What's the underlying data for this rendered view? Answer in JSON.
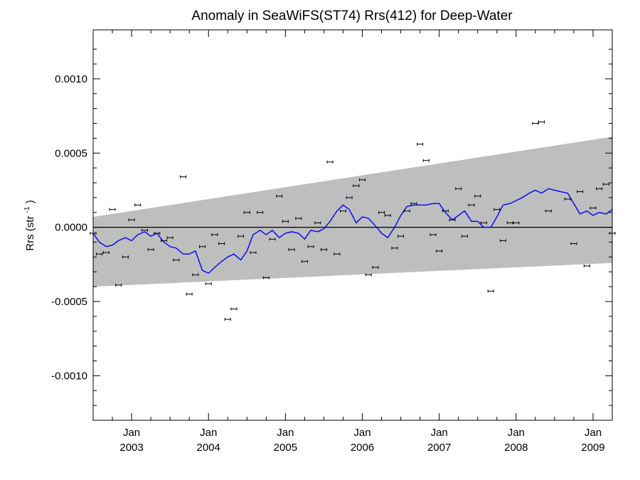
{
  "chart_data": {
    "type": "line",
    "title": "Anomaly in SeaWiFS(ST74) Rrs(412) for Deep-Water",
    "ylabel": {
      "base": "Rrs (str",
      "superscript": "-1",
      "tail": ")"
    },
    "xlabel": "",
    "xlim": [
      2002.5,
      2009.25
    ],
    "ylim": [
      -0.0013,
      0.00133
    ],
    "y_ticks": [
      {
        "value": 0.001,
        "label": "0.0010"
      },
      {
        "value": 0.0005,
        "label": "0.0005"
      },
      {
        "value": 0.0,
        "label": "0.0000"
      },
      {
        "value": -0.0005,
        "label": "-0.0005"
      },
      {
        "value": -0.001,
        "label": "-0.0010"
      }
    ],
    "x_ticks": [
      {
        "value": 2003.0,
        "month": "Jan",
        "year": "2003"
      },
      {
        "value": 2004.0,
        "month": "Jan",
        "year": "2004"
      },
      {
        "value": 2005.0,
        "month": "Jan",
        "year": "2005"
      },
      {
        "value": 2006.0,
        "month": "Jan",
        "year": "2006"
      },
      {
        "value": 2007.0,
        "month": "Jan",
        "year": "2007"
      },
      {
        "value": 2008.0,
        "month": "Jan",
        "year": "2008"
      },
      {
        "value": 2009.0,
        "month": "Jan",
        "year": "2009"
      }
    ],
    "zero_line": true,
    "band": {
      "upper_start": 7e-05,
      "upper_end": 0.00061,
      "lower_start": -0.0004,
      "lower_end": -0.00024,
      "color": "#bebebe"
    },
    "line_color": "#0000ff",
    "series": [
      {
        "type": "line",
        "x": [
          2002.5,
          2002.58,
          2002.67,
          2002.75,
          2002.83,
          2002.92,
          2003.0,
          2003.08,
          2003.17,
          2003.25,
          2003.33,
          2003.42,
          2003.5,
          2003.58,
          2003.67,
          2003.75,
          2003.83,
          2003.92,
          2004.0,
          2004.08,
          2004.17,
          2004.25,
          2004.33,
          2004.42,
          2004.5,
          2004.58,
          2004.67,
          2004.75,
          2004.83,
          2004.92,
          2005.0,
          2005.08,
          2005.17,
          2005.25,
          2005.33,
          2005.42,
          2005.5,
          2005.58,
          2005.67,
          2005.75,
          2005.83,
          2005.92,
          2006.0,
          2006.08,
          2006.17,
          2006.25,
          2006.33,
          2006.42,
          2006.5,
          2006.58,
          2006.67,
          2006.75,
          2006.83,
          2006.92,
          2007.0,
          2007.08,
          2007.17,
          2007.25,
          2007.33,
          2007.42,
          2007.5,
          2007.58,
          2007.67,
          2007.75,
          2007.83,
          2007.92,
          2008.0,
          2008.08,
          2008.17,
          2008.25,
          2008.33,
          2008.42,
          2008.5,
          2008.58,
          2008.67,
          2008.75,
          2008.83,
          2008.92,
          2009.0,
          2009.08,
          2009.17,
          2009.25
        ],
        "y": [
          -4e-05,
          -0.0001,
          -0.00013,
          -0.00012,
          -9e-05,
          -7e-05,
          -9e-05,
          -5e-05,
          -3e-05,
          -6e-05,
          -4e-05,
          -0.0001,
          -0.00013,
          -0.00014,
          -0.00018,
          -0.00018,
          -0.00016,
          -0.00029,
          -0.00031,
          -0.00027,
          -0.00023,
          -0.0002,
          -0.00018,
          -0.00022,
          -0.00016,
          -5e-05,
          -2e-05,
          -5e-05,
          -2e-05,
          -7e-05,
          -4e-05,
          -3e-05,
          -4e-05,
          -8e-05,
          -2e-05,
          -3e-05,
          -1e-05,
          4e-05,
          0.00011,
          0.00015,
          0.00012,
          3e-05,
          7e-05,
          6e-05,
          1e-05,
          -4e-05,
          -7e-05,
          0.0,
          8e-05,
          0.00014,
          0.00015,
          0.00015,
          0.00015,
          0.00016,
          0.00016,
          0.0001,
          5e-05,
          8e-05,
          0.00011,
          4e-05,
          4e-05,
          0.0,
          0.0,
          7e-05,
          0.00015,
          0.00016,
          0.00018,
          0.0002,
          0.00023,
          0.00025,
          0.00023,
          0.00026,
          0.00025,
          0.00024,
          0.00023,
          0.00016,
          9e-05,
          0.00011,
          8e-05,
          0.0001,
          9e-05,
          0.00012
        ]
      },
      {
        "type": "points_with_errorbars",
        "x": [
          2002.5,
          2002.58,
          2002.67,
          2002.75,
          2002.83,
          2002.92,
          2003.0,
          2003.08,
          2003.17,
          2003.25,
          2003.33,
          2003.42,
          2003.5,
          2003.58,
          2003.67,
          2003.75,
          2003.83,
          2003.92,
          2004.0,
          2004.08,
          2004.17,
          2004.25,
          2004.33,
          2004.42,
          2004.5,
          2004.58,
          2004.67,
          2004.75,
          2004.83,
          2004.92,
          2005.0,
          2005.08,
          2005.17,
          2005.25,
          2005.33,
          2005.42,
          2005.5,
          2005.58,
          2005.67,
          2005.75,
          2005.83,
          2005.92,
          2006.0,
          2006.08,
          2006.17,
          2006.25,
          2006.33,
          2006.42,
          2006.5,
          2006.58,
          2006.67,
          2006.75,
          2006.83,
          2006.92,
          2007.0,
          2007.08,
          2007.17,
          2007.25,
          2007.33,
          2007.42,
          2007.5,
          2007.58,
          2007.67,
          2007.75,
          2007.83,
          2007.92,
          2008.0,
          2008.25,
          2008.33,
          2008.42,
          2008.67,
          2008.75,
          2008.83,
          2008.92,
          2009.0,
          2009.08,
          2009.17,
          2009.25
        ],
        "y": [
          -4e-05,
          -0.00018,
          -0.00017,
          0.00012,
          -0.00039,
          -0.0002,
          5e-05,
          0.00015,
          -2e-05,
          -0.00015,
          -4e-05,
          -9e-05,
          -7e-05,
          -0.00022,
          0.00034,
          -0.00045,
          -0.00032,
          -0.00013,
          -0.00038,
          -5e-05,
          -0.00011,
          -0.00062,
          -0.00055,
          -6e-05,
          0.0001,
          -0.00017,
          0.0001,
          -0.00034,
          -8e-05,
          0.00021,
          4e-05,
          -0.00015,
          6e-05,
          -0.00023,
          -0.00013,
          3e-05,
          -0.00015,
          0.00044,
          -0.00018,
          0.00011,
          0.0002,
          0.00028,
          0.00032,
          -0.00032,
          -0.00027,
          0.0001,
          8e-05,
          -0.00014,
          -6e-05,
          0.00011,
          0.00016,
          0.00056,
          0.00045,
          -5e-05,
          -0.00016,
          0.00011,
          5e-05,
          0.00026,
          -6e-05,
          0.00015,
          0.00021,
          3e-05,
          -0.00043,
          0.00012,
          -9e-05,
          3e-05,
          3e-05,
          0.0007,
          0.00071,
          0.00011,
          0.00019,
          -0.00011,
          0.00024,
          -0.00026,
          0.00013,
          0.00026,
          0.00029,
          -4e-05
        ],
        "err": 5e-06
      }
    ]
  }
}
